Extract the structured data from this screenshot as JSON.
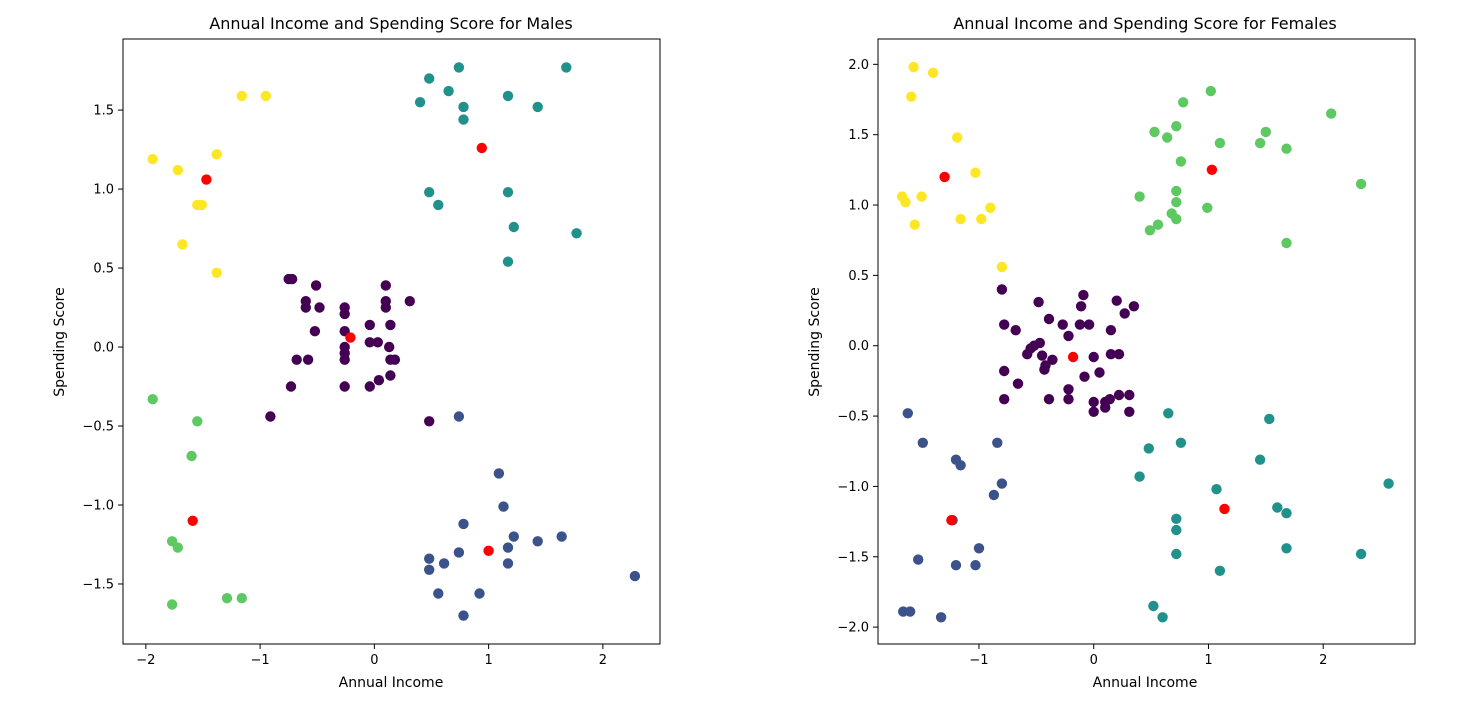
{
  "chart_data": [
    {
      "type": "scatter",
      "title": "Annual Income and Spending Score for Males",
      "xlabel": "Annual Income",
      "ylabel": "Spending Score",
      "xlim": [
        -2.2,
        2.5
      ],
      "ylim": [
        -1.88,
        1.95
      ],
      "xticks": [
        -2,
        -1,
        0,
        1,
        2
      ],
      "yticks": [
        -1.5,
        -1.0,
        -0.5,
        0.0,
        0.5,
        1.0,
        1.5
      ],
      "grid": false,
      "legend": "none",
      "clusters": [
        {
          "color": "#440154",
          "points": [
            [
              -0.75,
              0.43
            ],
            [
              -0.72,
              0.43
            ],
            [
              -0.51,
              0.39
            ],
            [
              -0.6,
              0.29
            ],
            [
              -0.6,
              0.25
            ],
            [
              -0.48,
              0.25
            ],
            [
              -0.52,
              0.1
            ],
            [
              -0.68,
              -0.08
            ],
            [
              -0.58,
              -0.08
            ],
            [
              -0.73,
              -0.25
            ],
            [
              -0.91,
              -0.44
            ],
            [
              -0.26,
              0.25
            ],
            [
              -0.26,
              0.21
            ],
            [
              -0.26,
              0.1
            ],
            [
              -0.26,
              0.0
            ],
            [
              -0.26,
              -0.04
            ],
            [
              -0.26,
              -0.08
            ],
            [
              -0.26,
              -0.25
            ],
            [
              -0.04,
              0.14
            ],
            [
              0.1,
              0.39
            ],
            [
              0.1,
              0.29
            ],
            [
              0.1,
              0.25
            ],
            [
              0.14,
              0.14
            ],
            [
              0.31,
              0.29
            ],
            [
              -0.04,
              0.03
            ],
            [
              0.03,
              0.03
            ],
            [
              0.13,
              0.0
            ],
            [
              0.14,
              -0.08
            ],
            [
              0.18,
              -0.08
            ],
            [
              0.14,
              -0.18
            ],
            [
              0.04,
              -0.21
            ],
            [
              -0.04,
              -0.25
            ],
            [
              0.48,
              -0.47
            ]
          ]
        },
        {
          "color": "#3b528b",
          "points": [
            [
              0.74,
              -0.44
            ],
            [
              1.09,
              -0.8
            ],
            [
              1.13,
              -1.01
            ],
            [
              0.78,
              -1.12
            ],
            [
              1.22,
              -1.2
            ],
            [
              1.64,
              -1.2
            ],
            [
              1.43,
              -1.23
            ],
            [
              1.17,
              -1.27
            ],
            [
              1.17,
              -1.37
            ],
            [
              0.74,
              -1.3
            ],
            [
              0.48,
              -1.34
            ],
            [
              0.48,
              -1.41
            ],
            [
              0.61,
              -1.37
            ],
            [
              0.56,
              -1.56
            ],
            [
              0.92,
              -1.56
            ],
            [
              0.78,
              -1.7
            ],
            [
              2.28,
              -1.45
            ]
          ]
        },
        {
          "color": "#21918c",
          "points": [
            [
              0.74,
              1.77
            ],
            [
              1.68,
              1.77
            ],
            [
              0.48,
              1.7
            ],
            [
              0.65,
              1.62
            ],
            [
              1.17,
              1.59
            ],
            [
              0.4,
              1.55
            ],
            [
              0.78,
              1.52
            ],
            [
              1.43,
              1.52
            ],
            [
              0.78,
              1.44
            ],
            [
              0.48,
              0.98
            ],
            [
              1.17,
              0.98
            ],
            [
              0.56,
              0.9
            ],
            [
              1.22,
              0.76
            ],
            [
              1.77,
              0.72
            ],
            [
              1.17,
              0.54
            ]
          ]
        },
        {
          "color": "#5ec962",
          "points": [
            [
              -1.94,
              -0.33
            ],
            [
              -1.55,
              -0.47
            ],
            [
              -1.6,
              -0.69
            ],
            [
              -1.77,
              -1.23
            ],
            [
              -1.72,
              -1.27
            ],
            [
              -1.77,
              -1.63
            ],
            [
              -1.29,
              -1.59
            ],
            [
              -1.16,
              -1.59
            ]
          ]
        },
        {
          "color": "#fde725",
          "points": [
            [
              -1.16,
              1.59
            ],
            [
              -0.95,
              1.59
            ],
            [
              -1.94,
              1.19
            ],
            [
              -1.72,
              1.12
            ],
            [
              -1.38,
              1.22
            ],
            [
              -1.55,
              0.9
            ],
            [
              -1.51,
              0.9
            ],
            [
              -1.68,
              0.65
            ],
            [
              -1.38,
              0.47
            ]
          ]
        },
        {
          "color": "#ff0000",
          "points": [
            [
              -1.47,
              1.06
            ],
            [
              0.94,
              1.26
            ],
            [
              -0.21,
              0.06
            ],
            [
              -1.59,
              -1.1
            ],
            [
              1.0,
              -1.29
            ]
          ]
        }
      ]
    },
    {
      "type": "scatter",
      "title": "Annual Income and Spending Score for Females",
      "xlabel": "Annual Income",
      "ylabel": "Spending Score",
      "xlim": [
        -1.88,
        2.8
      ],
      "ylim": [
        -2.12,
        2.18
      ],
      "xticks": [
        -1,
        0,
        1,
        2
      ],
      "yticks": [
        -2.0,
        -1.5,
        -1.0,
        -0.5,
        0.0,
        0.5,
        1.0,
        1.5,
        2.0
      ],
      "grid": false,
      "legend": "none",
      "clusters": [
        {
          "color": "#440154",
          "points": [
            [
              -0.8,
              0.4
            ],
            [
              -0.78,
              0.15
            ],
            [
              -0.68,
              0.11
            ],
            [
              -0.78,
              -0.18
            ],
            [
              -0.78,
              -0.38
            ],
            [
              -0.66,
              -0.27
            ],
            [
              -0.58,
              -0.06
            ],
            [
              -0.48,
              0.31
            ],
            [
              -0.47,
              0.02
            ],
            [
              -0.43,
              -0.17
            ],
            [
              -0.39,
              -0.38
            ],
            [
              -0.39,
              0.19
            ],
            [
              -0.36,
              -0.1
            ],
            [
              -0.27,
              0.15
            ],
            [
              -0.22,
              0.07
            ],
            [
              -0.22,
              -0.31
            ],
            [
              -0.22,
              -0.38
            ],
            [
              -0.12,
              0.15
            ],
            [
              -0.11,
              0.28
            ],
            [
              -0.09,
              0.36
            ],
            [
              -0.04,
              0.15
            ],
            [
              -0.08,
              -0.22
            ],
            [
              0.0,
              -0.08
            ],
            [
              0.0,
              -0.4
            ],
            [
              0.0,
              -0.47
            ],
            [
              0.1,
              -0.4
            ],
            [
              0.1,
              -0.44
            ],
            [
              0.15,
              0.11
            ],
            [
              0.15,
              -0.06
            ],
            [
              0.14,
              -0.38
            ],
            [
              0.2,
              0.32
            ],
            [
              0.22,
              -0.06
            ],
            [
              0.22,
              -0.35
            ],
            [
              0.27,
              0.23
            ],
            [
              0.31,
              -0.47
            ],
            [
              0.31,
              -0.35
            ],
            [
              0.35,
              0.28
            ],
            [
              -0.55,
              -0.02
            ],
            [
              -0.52,
              0.0
            ],
            [
              -0.45,
              -0.07
            ],
            [
              -0.42,
              -0.14
            ],
            [
              0.05,
              -0.19
            ]
          ]
        },
        {
          "color": "#3b528b",
          "points": [
            [
              -1.62,
              -0.48
            ],
            [
              -1.49,
              -0.69
            ],
            [
              -0.84,
              -0.69
            ],
            [
              -1.2,
              -0.81
            ],
            [
              -1.16,
              -0.85
            ],
            [
              -0.8,
              -0.98
            ],
            [
              -0.87,
              -1.06
            ],
            [
              -1.23,
              -1.24
            ],
            [
              -1.0,
              -1.44
            ],
            [
              -1.53,
              -1.52
            ],
            [
              -1.2,
              -1.56
            ],
            [
              -1.03,
              -1.56
            ],
            [
              -1.66,
              -1.89
            ],
            [
              -1.6,
              -1.89
            ],
            [
              -1.33,
              -1.93
            ]
          ]
        },
        {
          "color": "#21918c",
          "points": [
            [
              0.65,
              -0.48
            ],
            [
              1.53,
              -0.52
            ],
            [
              0.48,
              -0.73
            ],
            [
              0.76,
              -0.69
            ],
            [
              1.45,
              -0.81
            ],
            [
              0.4,
              -0.93
            ],
            [
              1.07,
              -1.02
            ],
            [
              1.6,
              -1.15
            ],
            [
              1.68,
              -1.19
            ],
            [
              0.72,
              -1.23
            ],
            [
              0.72,
              -1.31
            ],
            [
              0.72,
              -1.48
            ],
            [
              1.68,
              -1.44
            ],
            [
              2.33,
              -1.48
            ],
            [
              1.1,
              -1.6
            ],
            [
              0.52,
              -1.85
            ],
            [
              0.6,
              -1.93
            ],
            [
              2.57,
              -0.98
            ]
          ]
        },
        {
          "color": "#5ec962",
          "points": [
            [
              1.02,
              1.81
            ],
            [
              0.78,
              1.73
            ],
            [
              2.07,
              1.65
            ],
            [
              0.72,
              1.56
            ],
            [
              0.53,
              1.52
            ],
            [
              1.5,
              1.52
            ],
            [
              0.64,
              1.48
            ],
            [
              1.1,
              1.44
            ],
            [
              1.45,
              1.44
            ],
            [
              1.68,
              1.4
            ],
            [
              0.76,
              1.31
            ],
            [
              2.33,
              1.15
            ],
            [
              0.72,
              1.1
            ],
            [
              0.4,
              1.06
            ],
            [
              0.72,
              1.02
            ],
            [
              0.99,
              0.98
            ],
            [
              0.68,
              0.94
            ],
            [
              0.72,
              0.9
            ],
            [
              0.56,
              0.86
            ],
            [
              0.49,
              0.82
            ],
            [
              1.68,
              0.73
            ]
          ]
        },
        {
          "color": "#fde725",
          "points": [
            [
              -1.57,
              1.98
            ],
            [
              -1.4,
              1.94
            ],
            [
              -1.59,
              1.77
            ],
            [
              -1.19,
              1.48
            ],
            [
              -1.67,
              1.06
            ],
            [
              -1.64,
              1.02
            ],
            [
              -1.5,
              1.06
            ],
            [
              -1.03,
              1.23
            ],
            [
              -0.9,
              0.98
            ],
            [
              -1.16,
              0.9
            ],
            [
              -0.98,
              0.9
            ],
            [
              -1.56,
              0.86
            ],
            [
              -0.8,
              0.56
            ]
          ]
        },
        {
          "color": "#ff0000",
          "points": [
            [
              -1.3,
              1.2
            ],
            [
              1.03,
              1.25
            ],
            [
              -0.18,
              -0.08
            ],
            [
              -1.24,
              -1.24
            ],
            [
              1.14,
              -1.16
            ]
          ]
        }
      ]
    }
  ]
}
